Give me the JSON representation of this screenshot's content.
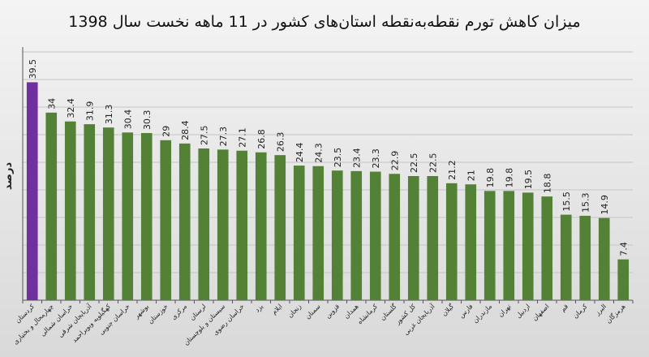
{
  "chart_data": {
    "type": "bar",
    "title": "میزان کاهش تورم نقطه‌به‌نقطه استان‌های کشور در 11 ماهه نخست سال 1398",
    "ylabel": "درصد",
    "xlabel": "",
    "ylim": [
      0,
      45
    ],
    "grid": true,
    "categories": [
      "کردستان",
      "چهارمحال و بختیاری",
      "خراسان شمالی",
      "آذربایجان شرقی",
      "کهگیلویه وبویراحمد",
      "خراسان جنوبی",
      "بوشهر",
      "خوزستان",
      "مرکزی",
      "لرستان",
      "سیستان و بلوچستان",
      "خراسان رضوی",
      "یزد",
      "ایلام",
      "زنجان",
      "سمنان",
      "قزوین",
      "همدان",
      "کرمانشاه",
      "گلستان",
      "کل کشور",
      "آذربایجان غربی",
      "گیلان",
      "فارس",
      "مازندران",
      "تهران",
      "اردبیل",
      "اصفهان",
      "قم",
      "کرمان",
      "البرز",
      "هرمزگان"
    ],
    "values": [
      39.5,
      34,
      32.4,
      31.9,
      31.3,
      30.4,
      30.3,
      29,
      28.4,
      27.5,
      27.3,
      27.1,
      26.8,
      26.3,
      24.4,
      24.3,
      23.5,
      23.4,
      23.3,
      22.9,
      22.5,
      22.5,
      21.2,
      21,
      19.8,
      19.8,
      19.5,
      18.8,
      15.5,
      15.3,
      14.9,
      7.4
    ],
    "value_labels": [
      "39.5",
      "34",
      "32.4",
      "31.9",
      "31.3",
      "30.4",
      "30.3",
      "29",
      "28.4",
      "27.5",
      "27.3",
      "27.1",
      "26.8",
      "26.3",
      "24.4",
      "24.3",
      "23.5",
      "23.4",
      "23.3",
      "22.9",
      "22.5",
      "22.5",
      "21.2",
      "21",
      "19.8",
      "19.8",
      "19.5",
      "18.8",
      "15.5",
      "15.3",
      "14.9",
      "7.4"
    ],
    "colors": {
      "default": "#538135",
      "highlight": "#7030A0"
    },
    "highlight_index": 0
  }
}
